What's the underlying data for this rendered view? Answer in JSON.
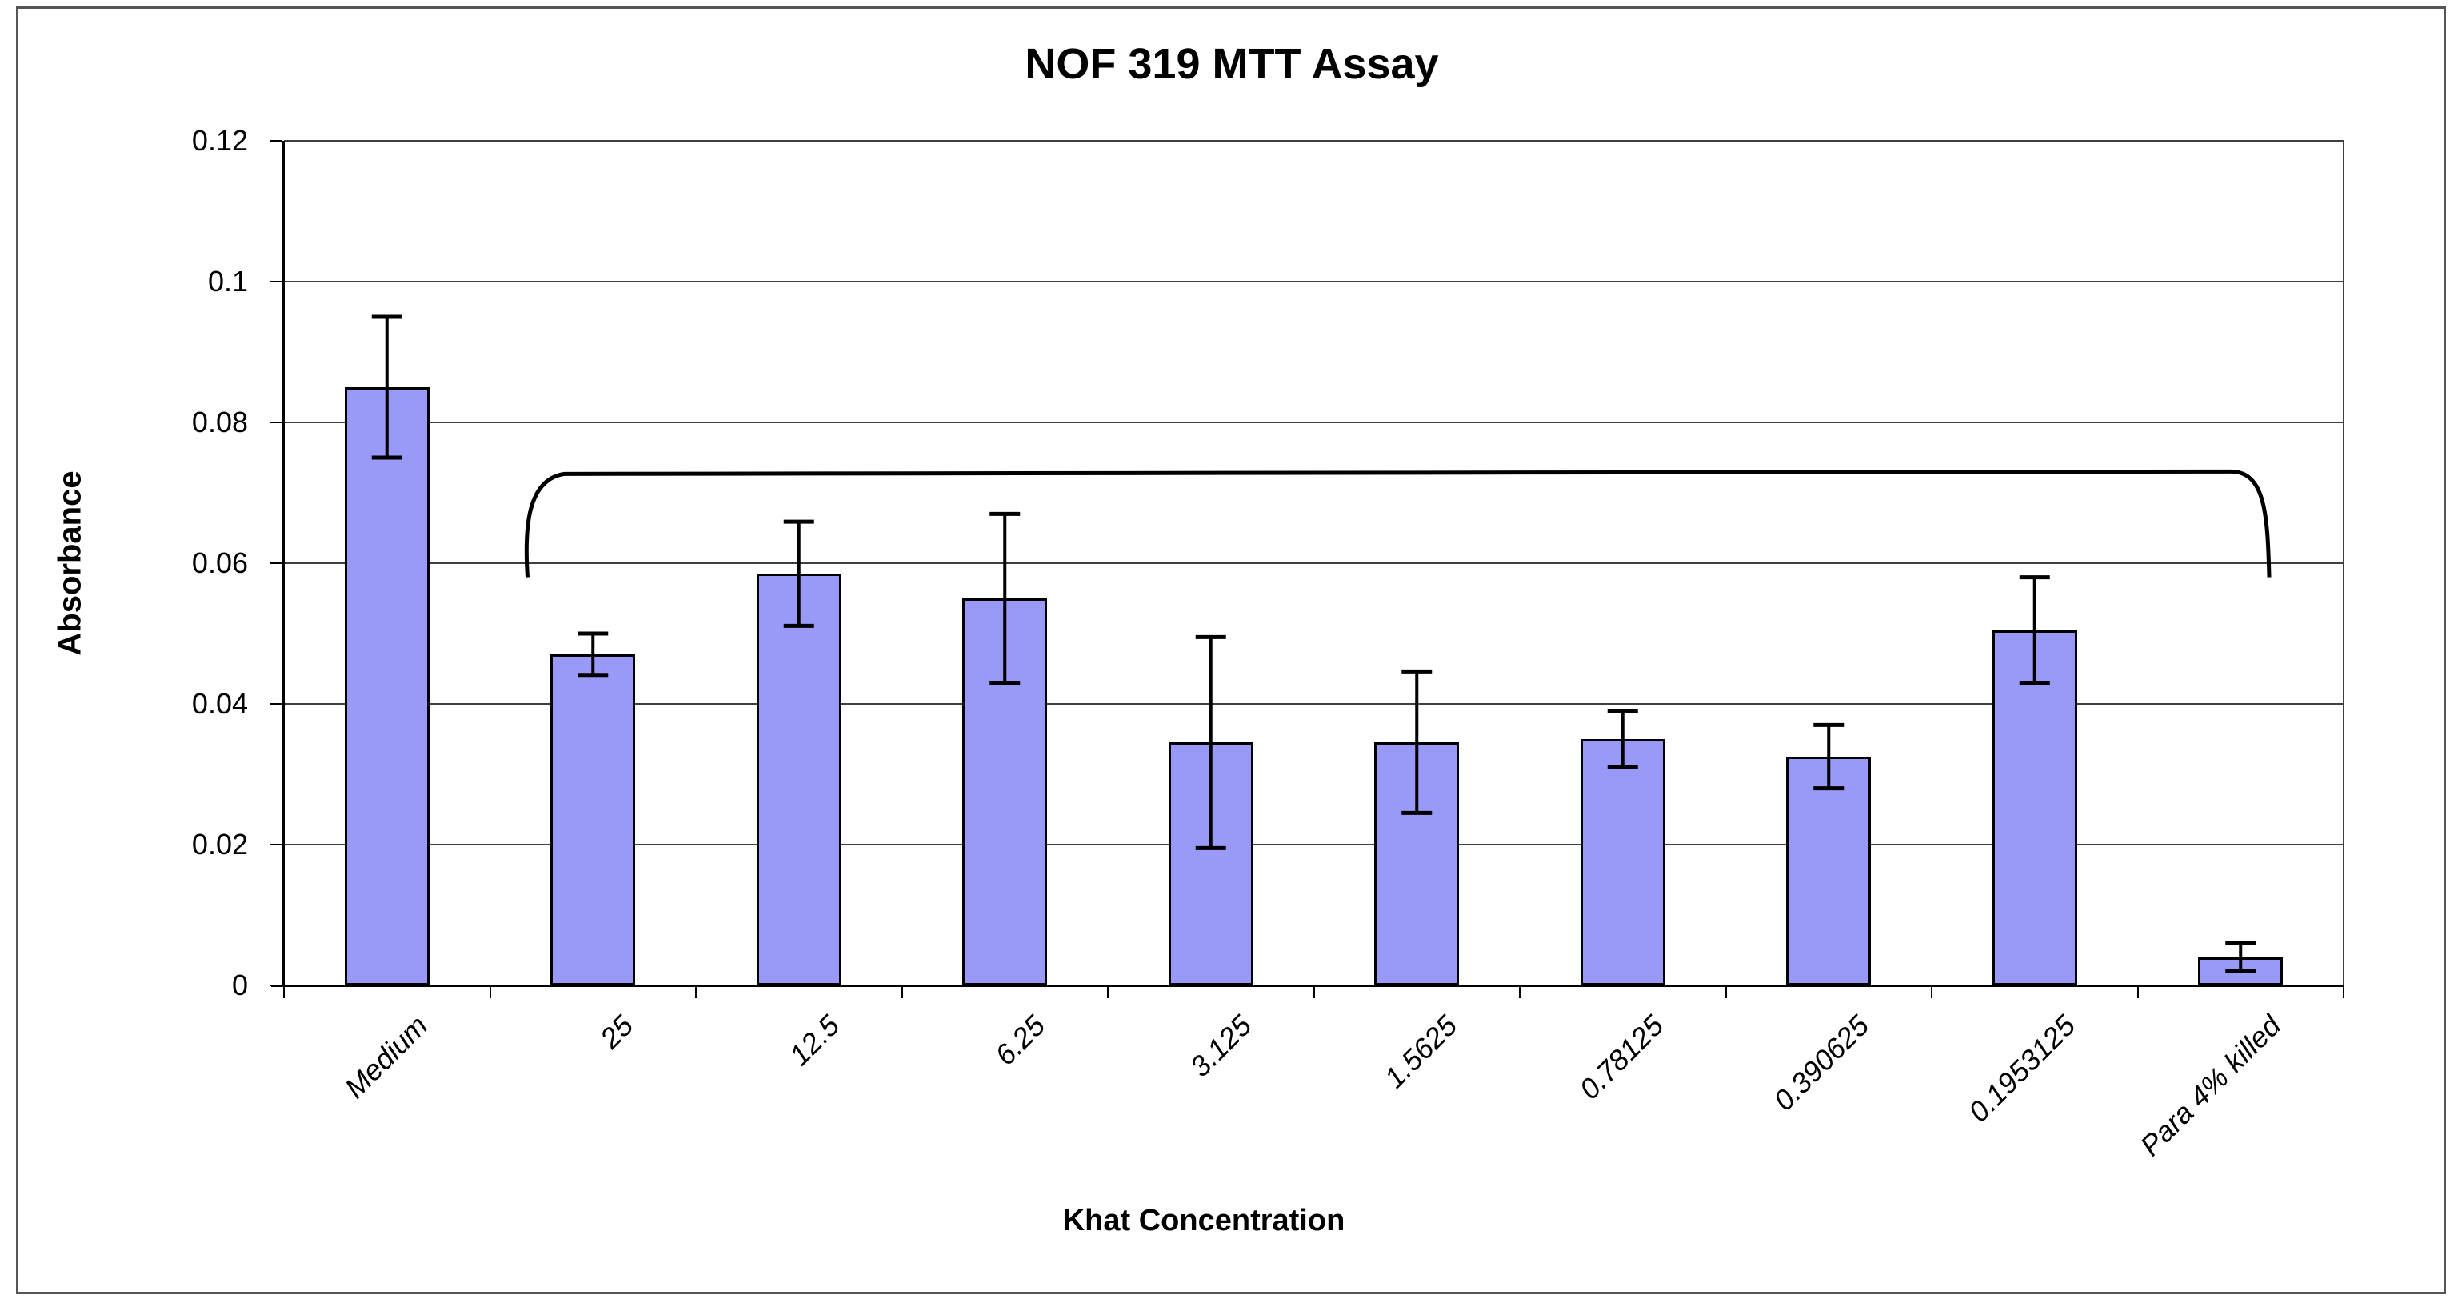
{
  "chart_data": {
    "type": "bar",
    "title": "NOF 319 MTT Assay",
    "xlabel": "Khat Concentration",
    "ylabel": "Absorbance",
    "categories": [
      "Medium",
      "25",
      "12.5",
      "6.25",
      "3.125",
      "1.5625",
      "0.78125",
      "0.390625",
      "0.1953125",
      "Para 4% killed"
    ],
    "values": [
      0.085,
      0.047,
      0.0585,
      0.055,
      0.0345,
      0.0345,
      0.035,
      0.0325,
      0.0505,
      0.004
    ],
    "errors": [
      0.01,
      0.003,
      0.0074,
      0.012,
      0.015,
      0.01,
      0.004,
      0.0045,
      0.0075,
      0.002
    ],
    "ylim": [
      0,
      0.12
    ],
    "y_tick_step": 0.02,
    "y_tick_labels": [
      "0.12",
      "0.1",
      "0.08",
      "0.06",
      "0.04",
      "0.02",
      "0"
    ],
    "grid": "horizontal",
    "legend": "none",
    "bar_color": "#9999F8",
    "bar_border_color": "#000000",
    "error_bar_color": "#000000",
    "annotation_bracket": {
      "from_category": "25",
      "to_category": "Para 4% killed",
      "y": 0.0728,
      "tail_bottom": 0.058
    }
  }
}
